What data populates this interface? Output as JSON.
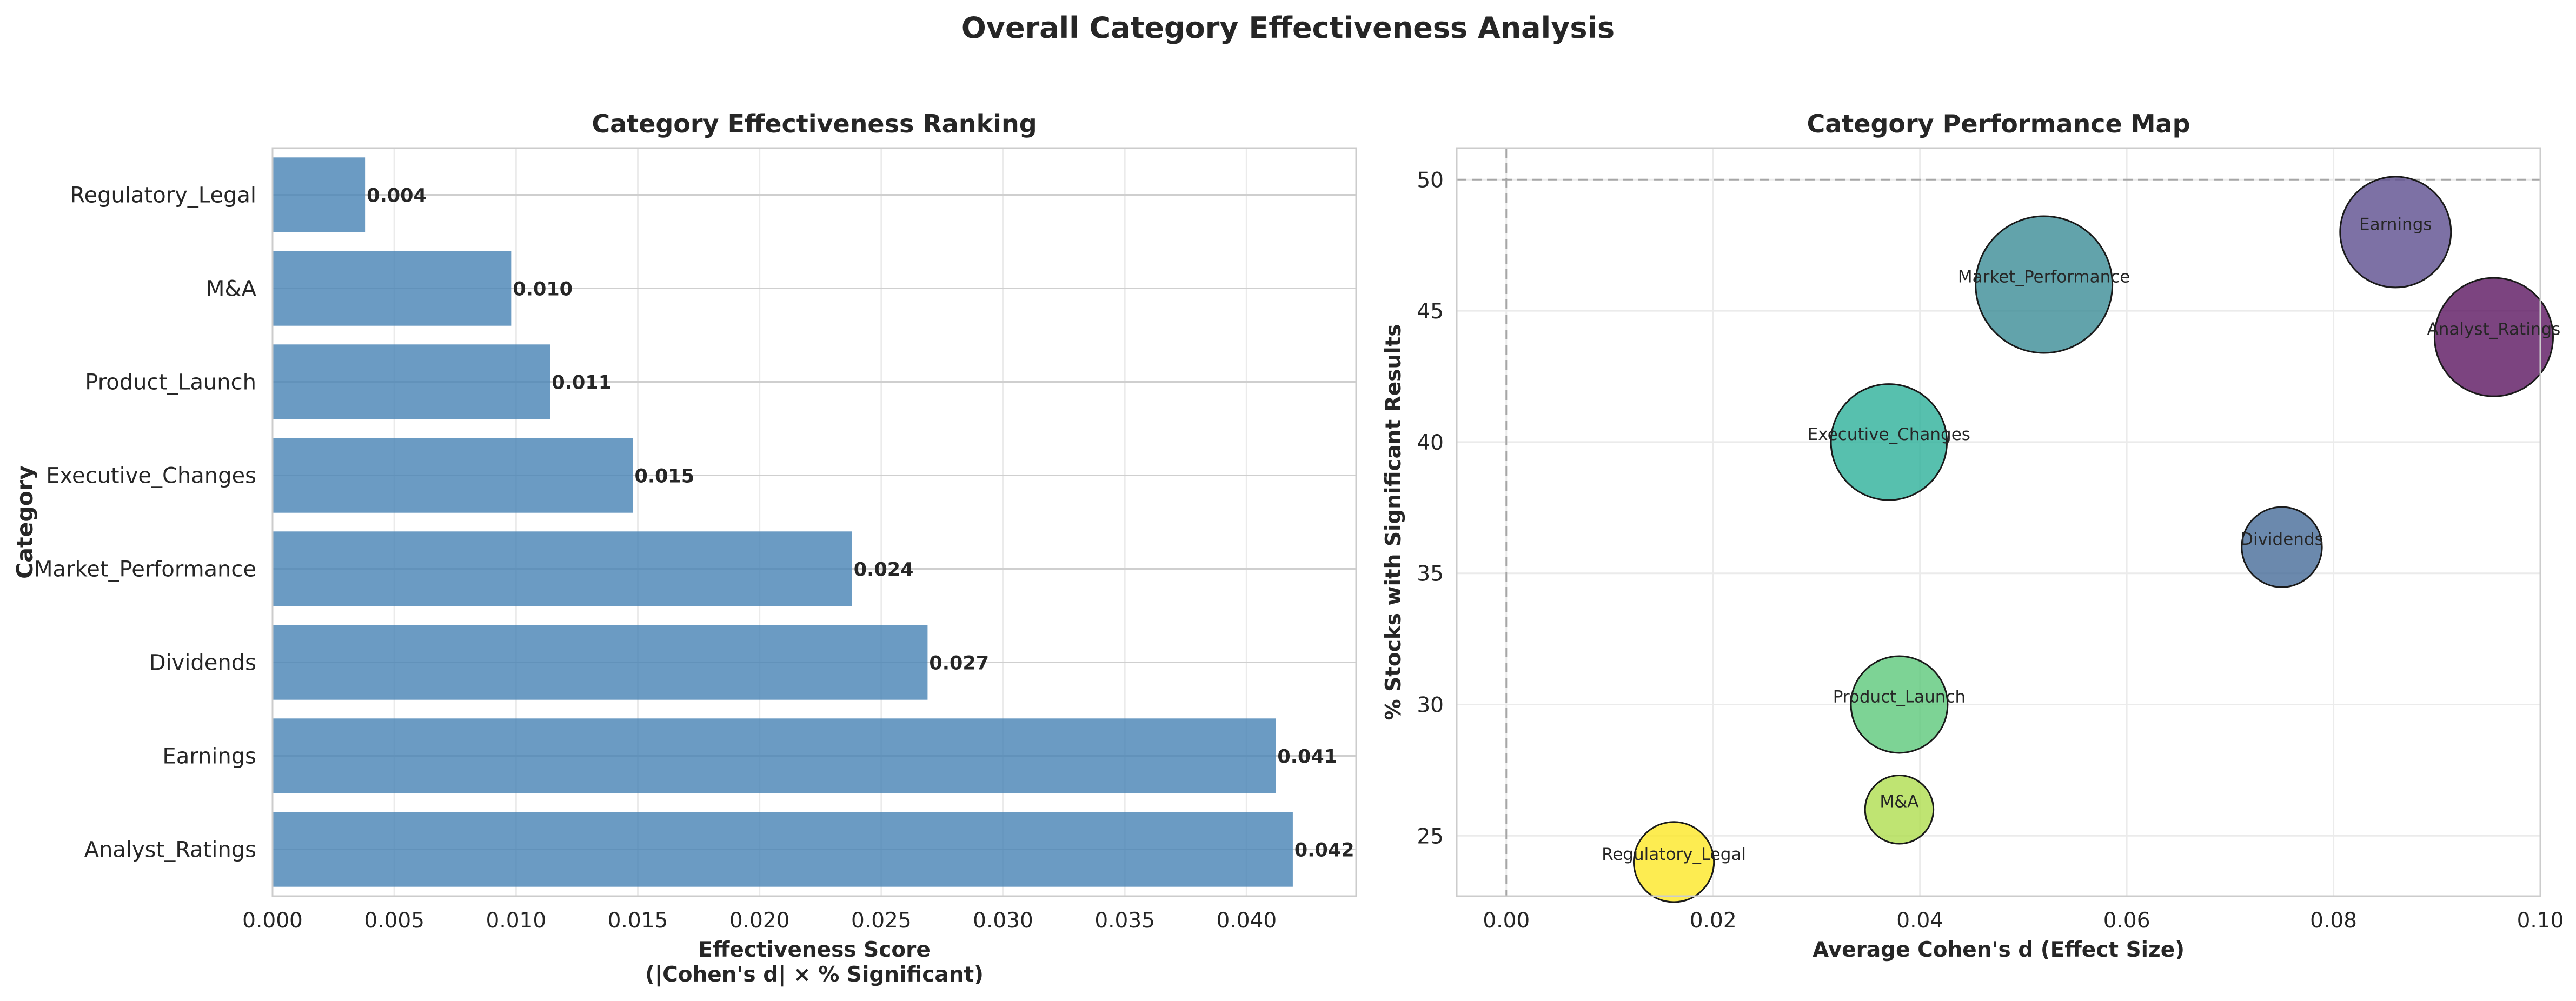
{
  "figure": {
    "title": "Overall Category Effectiveness Analysis"
  },
  "chart_data": [
    {
      "type": "bar",
      "orientation": "horizontal",
      "title": "Category Effectiveness Ranking",
      "xlabel": "Effectiveness Score\n(|Cohen's d| × % Significant)",
      "ylabel": "Category",
      "categories": [
        "Analyst_Ratings",
        "Earnings",
        "Dividends",
        "Market_Performance",
        "Executive_Changes",
        "Product_Launch",
        "M&A",
        "Regulatory_Legal"
      ],
      "values": [
        0.0419,
        0.0412,
        0.0269,
        0.0238,
        0.0148,
        0.0114,
        0.0098,
        0.0038
      ],
      "data_labels": [
        "0.042",
        "0.041",
        "0.027",
        "0.024",
        "0.015",
        "0.011",
        "0.010",
        "0.004"
      ],
      "xlim": [
        0,
        0.0445
      ],
      "xticks": [
        0,
        0.005,
        0.01,
        0.015,
        0.02,
        0.025,
        0.03,
        0.035,
        0.04
      ],
      "xtick_labels": [
        "0.000",
        "0.005",
        "0.010",
        "0.015",
        "0.020",
        "0.025",
        "0.030",
        "0.035",
        "0.040"
      ],
      "bar_color": "#4682b4",
      "grid": true
    },
    {
      "type": "scatter",
      "title": "Performance Map",
      "title_full": "Category Performance Map",
      "xlabel": "Average Cohen's d (Effect Size)",
      "ylabel": "% Stocks with Significant Results",
      "xlim": [
        -0.0048,
        0.1
      ],
      "ylim": [
        22.7,
        51.2
      ],
      "xticks": [
        0,
        0.02,
        0.04,
        0.06,
        0.08,
        0.1
      ],
      "xtick_labels": [
        "0.00",
        "0.02",
        "0.04",
        "0.06",
        "0.08",
        "0.10"
      ],
      "yticks": [
        25,
        30,
        35,
        40,
        45,
        50
      ],
      "ytick_labels": [
        "25",
        "30",
        "35",
        "40",
        "45",
        "50"
      ],
      "reference_lines": {
        "x": 0,
        "y": 50
      },
      "grid": true,
      "points": [
        {
          "label": "Earnings",
          "x": 0.086,
          "y": 48,
          "size": 1.05,
          "color": "#5c4d8f"
        },
        {
          "label": "Market_Performance",
          "x": 0.052,
          "y": 46,
          "size": 1.6,
          "color": "#3b8c96"
        },
        {
          "label": "Analyst_Ratings",
          "x": 0.0955,
          "y": 44,
          "size": 1.2,
          "color": "#5b1560"
        },
        {
          "label": "Executive_Changes",
          "x": 0.037,
          "y": 40,
          "size": 1.15,
          "color": "#2db09a"
        },
        {
          "label": "Dividends",
          "x": 0.075,
          "y": 36,
          "size": 0.55,
          "color": "#466b99"
        },
        {
          "label": "Product_Launch",
          "x": 0.038,
          "y": 30,
          "size": 0.8,
          "color": "#5cc87a"
        },
        {
          "label": "M&A",
          "x": 0.038,
          "y": 26,
          "size": 0.4,
          "color": "#afdd4f"
        },
        {
          "label": "Regulatory_Legal",
          "x": 0.0162,
          "y": 24,
          "size": 0.55,
          "color": "#fde725"
        }
      ]
    }
  ]
}
